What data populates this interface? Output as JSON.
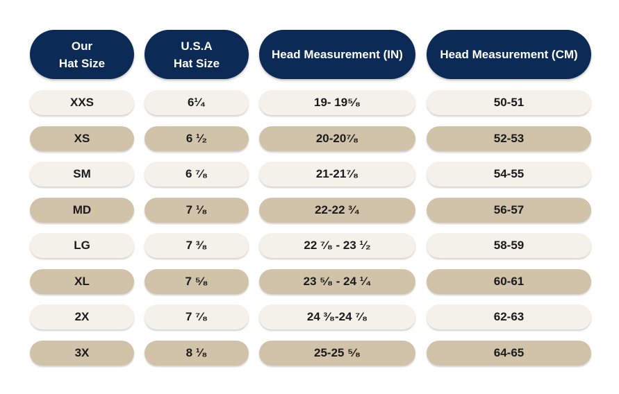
{
  "table": {
    "headers": [
      [
        "Our",
        "Hat Size"
      ],
      [
        "U.S.A",
        "Hat Size"
      ],
      [
        "Head Measurement (IN)"
      ],
      [
        "Head Measurement (CM)"
      ]
    ],
    "rows": [
      [
        "XXS",
        "6¹⁄₄",
        "19- 19⁵⁄₈",
        "50-51"
      ],
      [
        "XS",
        "6 ¹⁄₂",
        "20-20⁷⁄₈",
        "52-53"
      ],
      [
        "SM",
        "6 ⁷⁄₈",
        "21-21⁷⁄₈",
        "54-55"
      ],
      [
        "MD",
        "7 ¹⁄₈",
        "22-22 ³⁄₄",
        "56-57"
      ],
      [
        "LG",
        "7 ³⁄₈",
        "22 ⁷⁄₈ - 23 ¹⁄₂",
        "58-59"
      ],
      [
        "XL",
        "7 ⁵⁄₈",
        "23 ⁵⁄₈ - 24 ¹⁄₄",
        "60-61"
      ],
      [
        "2X",
        "7 ⁷⁄₈",
        "24 ³⁄₈-24 ⁷⁄₈",
        "62-63"
      ],
      [
        "3X",
        "8 ¹⁄₈",
        "25-25 ⁵⁄₈",
        "64-65"
      ]
    ]
  }
}
